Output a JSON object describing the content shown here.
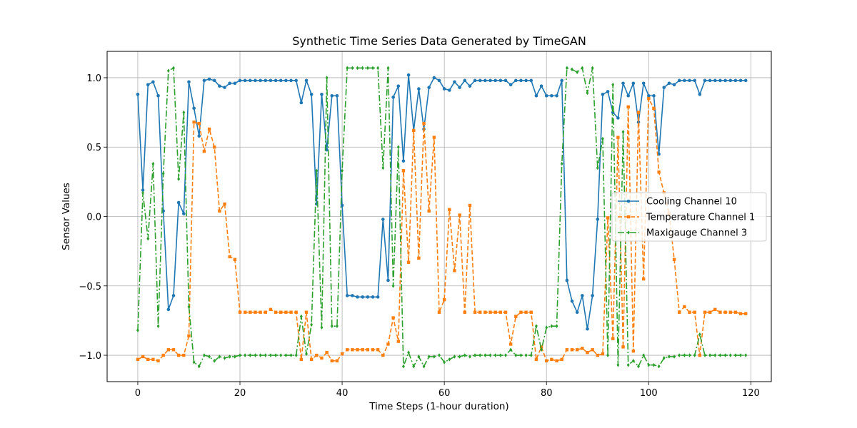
{
  "chart_data": {
    "type": "line",
    "title": "Synthetic Time Series Data Generated by TimeGAN",
    "xlabel": "Time Steps (1-hour duration)",
    "ylabel": "Sensor Values",
    "xlim": [
      -6,
      124
    ],
    "ylim": [
      -1.19,
      1.19
    ],
    "xticks": [
      0,
      20,
      40,
      60,
      80,
      100,
      120
    ],
    "yticks": [
      -1.0,
      -0.5,
      0.0,
      0.5,
      1.0
    ],
    "xtick_labels": [
      "0",
      "20",
      "40",
      "60",
      "80",
      "100",
      "120"
    ],
    "ytick_labels": [
      "−1.0",
      "−0.5",
      "0.0",
      "0.5",
      "1.0"
    ],
    "grid": true,
    "legend_position": "center-right",
    "series": [
      {
        "name": "Cooling Channel 10",
        "color": "#1f77b4",
        "linestyle": "solid",
        "marker": "circle",
        "values": [
          0.88,
          0.19,
          0.95,
          0.97,
          0.87,
          0.04,
          -0.67,
          -0.57,
          0.1,
          0.02,
          0.97,
          0.78,
          0.58,
          0.98,
          0.99,
          0.98,
          0.94,
          0.93,
          0.96,
          0.96,
          0.98,
          0.98,
          0.98,
          0.98,
          0.98,
          0.98,
          0.98,
          0.98,
          0.98,
          0.98,
          0.98,
          0.98,
          0.82,
          0.98,
          0.88,
          0.09,
          0.88,
          0.48,
          0.87,
          0.87,
          0.08,
          -0.57,
          -0.57,
          -0.58,
          -0.58,
          -0.58,
          -0.58,
          -0.58,
          -0.02,
          -0.46,
          0.86,
          0.94,
          0.4,
          1.02,
          0.62,
          0.92,
          0.63,
          0.93,
          1.0,
          0.98,
          0.92,
          0.91,
          0.97,
          0.93,
          0.98,
          0.94,
          0.98,
          0.98,
          0.98,
          0.98,
          0.98,
          0.98,
          0.98,
          0.95,
          0.98,
          0.98,
          0.98,
          0.98,
          0.87,
          0.94,
          0.87,
          0.87,
          0.87,
          0.98,
          -0.46,
          -0.61,
          -0.69,
          -0.57,
          -0.81,
          -0.57,
          -0.02,
          0.88,
          0.9,
          0.75,
          0.71,
          0.96,
          0.87,
          0.96,
          0.68,
          0.96,
          0.87,
          0.87,
          0.45,
          0.93,
          0.96,
          0.95,
          0.98,
          0.98,
          0.98,
          0.98,
          0.88,
          0.98,
          0.98,
          0.98,
          0.98,
          0.98,
          0.98,
          0.98,
          0.98,
          0.98
        ]
      },
      {
        "name": "Temperature Channel 1",
        "color": "#ff7f0e",
        "linestyle": "dashed",
        "marker": "square",
        "values": [
          -1.03,
          -1.01,
          -1.03,
          -1.03,
          -1.04,
          -1.0,
          -0.96,
          -0.96,
          -1.0,
          -1.0,
          -0.86,
          0.68,
          0.67,
          0.47,
          0.63,
          0.5,
          0.04,
          0.09,
          -0.29,
          -0.31,
          -0.69,
          -0.69,
          -0.69,
          -0.69,
          -0.69,
          -0.69,
          -0.67,
          -0.69,
          -0.69,
          -0.69,
          -0.69,
          -0.69,
          -1.03,
          -0.69,
          -1.03,
          -1.0,
          -1.02,
          -0.98,
          -1.04,
          -1.04,
          -0.99,
          -0.96,
          -0.96,
          -0.96,
          -0.96,
          -0.96,
          -0.96,
          -0.96,
          -1.0,
          -0.92,
          -0.73,
          -0.9,
          0.33,
          -0.33,
          0.62,
          -0.3,
          0.67,
          0.04,
          0.57,
          -0.69,
          -0.6,
          0.05,
          -0.39,
          0.01,
          -0.69,
          0.08,
          -0.69,
          -0.69,
          -0.69,
          -0.69,
          -0.69,
          -0.69,
          -0.69,
          -0.92,
          -0.72,
          -0.69,
          -0.69,
          -0.69,
          -1.03,
          -0.94,
          -1.04,
          -1.03,
          -1.04,
          -1.03,
          -0.96,
          -0.96,
          -0.96,
          -0.95,
          -0.98,
          -0.96,
          -1.0,
          -0.99,
          -0.01,
          -0.88,
          0.57,
          -0.94,
          0.79,
          -0.97,
          0.75,
          -0.45,
          0.85,
          0.78,
          0.32,
          0.17,
          0.02,
          -0.31,
          -0.69,
          -0.65,
          -0.69,
          -0.69,
          -1.0,
          -0.69,
          -0.69,
          -0.67,
          -0.69,
          -0.69,
          -0.69,
          -0.69,
          -0.7,
          -0.7
        ]
      },
      {
        "name": "Maxigauge Channel 3",
        "color": "#2ca02c",
        "linestyle": "dashdot",
        "marker": "diamond",
        "values": [
          -0.82,
          0.17,
          -0.16,
          0.38,
          -0.79,
          0.31,
          1.05,
          1.07,
          0.27,
          0.75,
          -0.65,
          -1.05,
          -1.08,
          -1.0,
          -1.01,
          -1.04,
          -1.01,
          -1.02,
          -1.01,
          -1.01,
          -1.0,
          -1.0,
          -1.0,
          -1.0,
          -1.0,
          -1.0,
          -1.0,
          -1.0,
          -1.0,
          -1.0,
          -1.0,
          -1.0,
          -0.72,
          -0.99,
          -0.78,
          0.33,
          -0.8,
          1.0,
          -0.79,
          -0.79,
          0.33,
          1.07,
          1.07,
          1.07,
          1.07,
          1.07,
          1.07,
          1.07,
          0.35,
          1.07,
          -0.5,
          0.5,
          -1.08,
          -0.98,
          -1.08,
          -1.01,
          -1.08,
          -1.01,
          -1.01,
          -1.0,
          -1.05,
          -1.03,
          -1.01,
          -1.01,
          -1.0,
          -1.01,
          -1.0,
          -1.0,
          -1.0,
          -1.0,
          -1.0,
          -1.0,
          -1.0,
          -0.96,
          -1.0,
          -1.0,
          -1.0,
          -1.0,
          -0.79,
          -0.96,
          -0.8,
          -0.79,
          -0.79,
          0.38,
          1.07,
          1.06,
          1.04,
          1.07,
          0.89,
          1.07,
          0.35,
          0.56,
          -1.0,
          0.95,
          -1.07,
          0.61,
          -1.07,
          -1.04,
          -1.08,
          -1.0,
          -1.07,
          -1.07,
          -1.08,
          -1.02,
          -1.01,
          -1.01,
          -1.0,
          -1.0,
          -1.0,
          -1.0,
          -0.85,
          -1.0,
          -1.0,
          -1.0,
          -1.0,
          -1.0,
          -1.0,
          -1.0,
          -1.0,
          -1.0
        ]
      }
    ]
  }
}
